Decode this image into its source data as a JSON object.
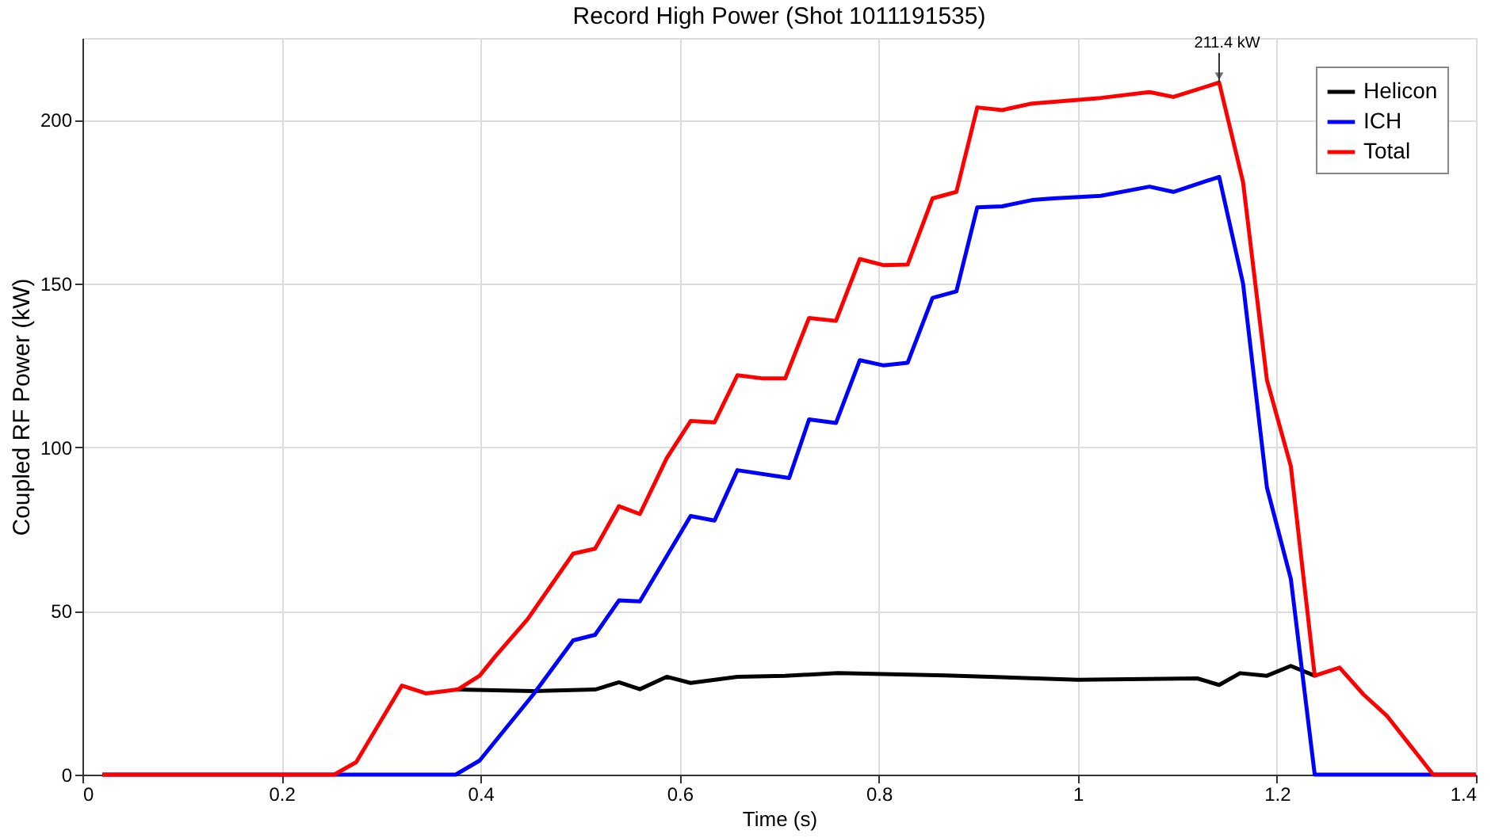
{
  "chart_data": {
    "type": "line",
    "title": "Record High Power (Shot 1011191535)",
    "xlabel": "Time (s)",
    "ylabel": "Coupled RF Power (kW)",
    "xlim": [
      0,
      1.4
    ],
    "xticks": [
      0,
      0.2,
      0.4,
      0.6,
      0.8,
      1,
      1.2,
      1.4
    ],
    "ylim": [
      0,
      225
    ],
    "yticks": [
      0,
      50,
      100,
      150,
      200
    ],
    "grid": true,
    "legend": "top right",
    "line_style": "solid",
    "marker": "none",
    "annotations": [
      {
        "text": "211.4 kW",
        "x": 1.142,
        "y": 211.4
      }
    ],
    "series": [
      {
        "name": "Helicon",
        "color": "#000000",
        "x": [
          0.375,
          0.453,
          0.515,
          0.539,
          0.56,
          0.587,
          0.611,
          0.658,
          0.706,
          0.759,
          0.867,
          1.0,
          1.12,
          1.142,
          1.163,
          1.19,
          1.214,
          1.238
        ],
        "values": [
          26,
          25.5,
          26,
          28.2,
          26.1,
          29.9,
          28,
          29.9,
          30.2,
          31,
          30.3,
          29,
          29.4,
          27.4,
          31,
          30.2,
          33.2,
          30.2
        ]
      },
      {
        "name": "ICH",
        "color": "#0000ff",
        "x": [
          0.02,
          0.26,
          0.375,
          0.399,
          0.453,
          0.493,
          0.515,
          0.539,
          0.56,
          0.611,
          0.635,
          0.658,
          0.71,
          0.73,
          0.757,
          0.781,
          0.805,
          0.829,
          0.854,
          0.878,
          0.899,
          0.924,
          0.954,
          0.975,
          1.023,
          1.072,
          1.096,
          1.142,
          1.166,
          1.19,
          1.214,
          1.238,
          1.4
        ],
        "values": [
          0,
          0,
          0,
          4.3,
          24.5,
          41,
          42.7,
          53.2,
          52.9,
          79,
          77.6,
          93,
          90.6,
          108.5,
          107.4,
          126.6,
          125,
          125.8,
          145.6,
          147.6,
          173.3,
          173.6,
          175.5,
          176,
          176.8,
          179.6,
          178,
          182.6,
          150,
          87.7,
          59.8,
          0,
          0
        ]
      },
      {
        "name": "Total",
        "color": "#ff0000",
        "x": [
          0.02,
          0.253,
          0.275,
          0.321,
          0.345,
          0.377,
          0.399,
          0.415,
          0.447,
          0.493,
          0.515,
          0.539,
          0.56,
          0.587,
          0.611,
          0.635,
          0.658,
          0.684,
          0.706,
          0.73,
          0.757,
          0.781,
          0.805,
          0.829,
          0.854,
          0.878,
          0.899,
          0.924,
          0.954,
          1.023,
          1.072,
          1.096,
          1.142,
          1.166,
          1.19,
          1.214,
          1.238,
          1.263,
          1.287,
          1.311,
          1.357,
          1.4
        ],
        "values": [
          0,
          0,
          3.8,
          27.2,
          24.8,
          26,
          30.2,
          36.2,
          47.4,
          67.5,
          69,
          82,
          79.6,
          96.7,
          108,
          107.6,
          122,
          121,
          121,
          139.5,
          138.6,
          157.5,
          155.6,
          155.8,
          176,
          178,
          203.8,
          203,
          205,
          206.7,
          208.5,
          207,
          211.4,
          181,
          120.5,
          94.2,
          30.2,
          32.7,
          24.5,
          17.8,
          0,
          0
        ]
      }
    ]
  }
}
